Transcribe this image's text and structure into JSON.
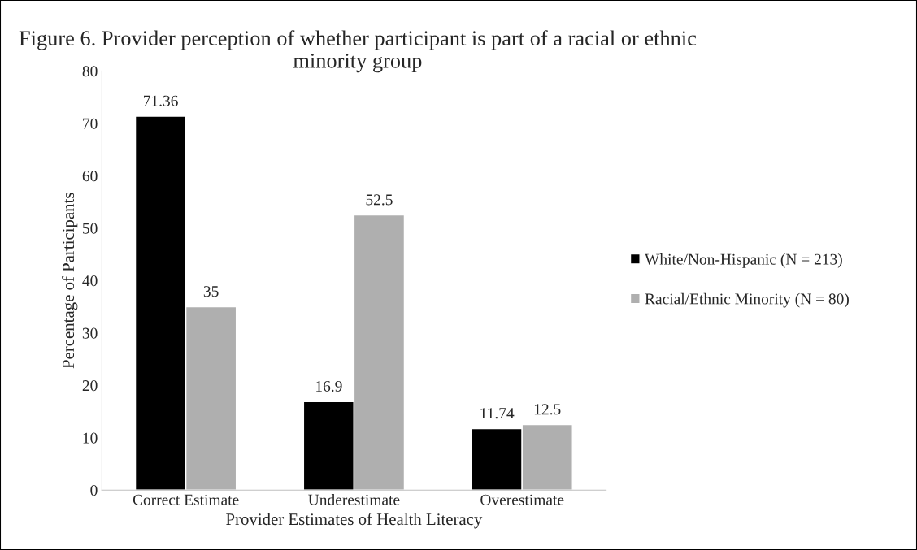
{
  "chart_data": {
    "type": "bar",
    "title": "Figure 6. Provider perception of whether participant is part of a racial or ethnic minority group",
    "xlabel": "Provider Estimates of Health Literacy",
    "ylabel": "Percentage of Participants",
    "categories": [
      "Correct Estimate",
      "Underestimate",
      "Overestimate"
    ],
    "series": [
      {
        "name": "White/Non-Hispanic (N = 213)",
        "color": "#000000",
        "values": [
          71.36,
          16.9,
          11.74
        ]
      },
      {
        "name": "Racial/Ethnic Minority (N = 80)",
        "color": "#afafaf",
        "values": [
          35,
          52.5,
          12.5
        ]
      }
    ],
    "ylim": [
      0,
      80
    ],
    "yticks": [
      0,
      10,
      20,
      30,
      40,
      50,
      60,
      70,
      80
    ],
    "data_labels": true,
    "grid": false,
    "legend": "right"
  }
}
